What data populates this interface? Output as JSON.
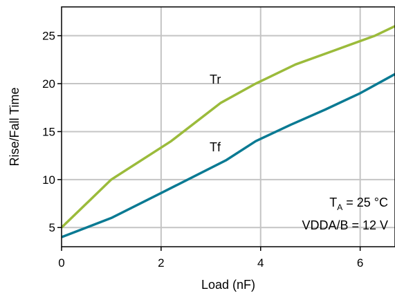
{
  "chart_data": {
    "type": "line",
    "title": "",
    "xlabel": "Load (nF)",
    "ylabel": "Rise/Fall Time",
    "xlim": [
      0,
      6.7
    ],
    "ylim": [
      3,
      28
    ],
    "xticks": [
      0,
      2,
      4,
      6
    ],
    "yticks": [
      5,
      10,
      15,
      20,
      25
    ],
    "grid": true,
    "series": [
      {
        "name": "Tr",
        "color": "#9bbb3b",
        "x": [
          0,
          1,
          2.2,
          3.2,
          3.9,
          4.7,
          5.5,
          6.3,
          6.7
        ],
        "y": [
          5,
          10,
          14,
          18,
          20,
          22,
          23.5,
          25,
          26
        ]
      },
      {
        "name": "Tf",
        "color": "#0a7a93",
        "x": [
          0,
          1,
          2,
          3.3,
          3.9,
          4.6,
          5.3,
          6,
          6.7
        ],
        "y": [
          4,
          6,
          8.6,
          12,
          14,
          15.7,
          17.3,
          19,
          21
        ]
      }
    ],
    "annotations": {
      "temperature": {
        "symbol": "T",
        "subscript": "A",
        "text": " = 25 °C"
      },
      "supply": "VDDA/B = 12 V"
    }
  }
}
